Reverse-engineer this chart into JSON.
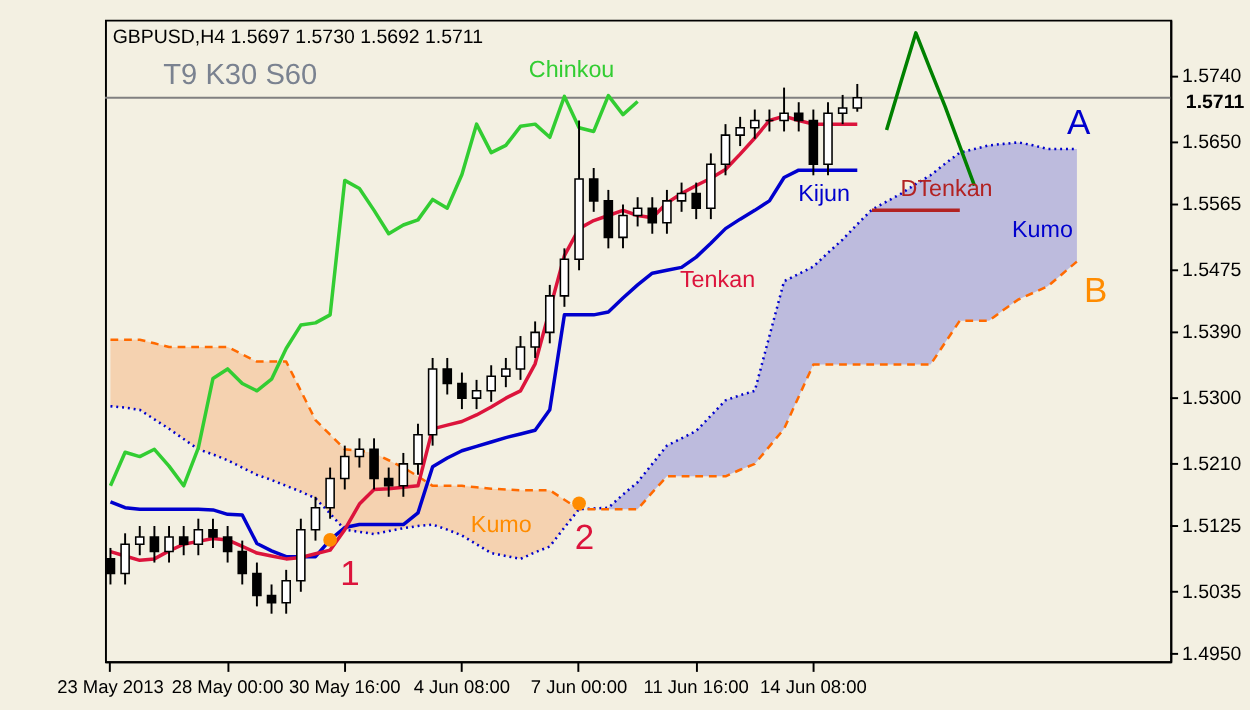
{
  "chart_data": {
    "type": "candlestick",
    "title": "GBPUSD,H4  1.5697 1.5730 1.5692 1.5711",
    "subtitle": "T9 K30 S60",
    "color": "#000000",
    "categories": [
      "23 May 2013",
      null,
      null,
      null,
      null,
      null,
      null,
      null,
      "28 May 00:00",
      null,
      null,
      null,
      null,
      null,
      null,
      null,
      "30 May 16:00",
      null,
      null,
      null,
      null,
      null,
      null,
      null,
      "4 Jun 08:00",
      null,
      null,
      null,
      null,
      null,
      null,
      null,
      "7 Jun 00:00",
      null,
      null,
      null,
      null,
      null,
      null,
      null,
      "11 Jun 16:00",
      null,
      null,
      null,
      null,
      null,
      null,
      null,
      "14 Jun 08:00",
      null,
      null,
      null,
      null,
      null,
      null,
      null,
      null,
      null,
      null,
      null,
      null,
      null,
      null,
      null,
      null,
      null,
      null,
      null,
      null,
      null,
      null,
      null,
      null
    ],
    "ohlc": [
      [
        1.508,
        1.5095,
        1.5045,
        1.506
      ],
      [
        1.506,
        1.5115,
        1.5045,
        1.51
      ],
      [
        1.51,
        1.5125,
        1.5085,
        1.511
      ],
      [
        1.511,
        1.5125,
        1.5075,
        1.509
      ],
      [
        1.509,
        1.5125,
        1.5075,
        1.511
      ],
      [
        1.511,
        1.5125,
        1.5085,
        1.51
      ],
      [
        1.51,
        1.5135,
        1.5085,
        1.512
      ],
      [
        1.512,
        1.5135,
        1.5095,
        1.511
      ],
      [
        1.511,
        1.5125,
        1.5075,
        1.509
      ],
      [
        1.509,
        1.5105,
        1.5045,
        1.506
      ],
      [
        1.506,
        1.5075,
        1.5015,
        1.503
      ],
      [
        1.503,
        1.5045,
        1.5005,
        1.502
      ],
      [
        1.502,
        1.5065,
        1.5005,
        1.505
      ],
      [
        1.505,
        1.5135,
        1.5035,
        1.512
      ],
      [
        1.512,
        1.5165,
        1.5105,
        1.515
      ],
      [
        1.515,
        1.5205,
        1.5135,
        1.519
      ],
      [
        1.519,
        1.5235,
        1.5175,
        1.522
      ],
      [
        1.522,
        1.5245,
        1.5205,
        1.523
      ],
      [
        1.523,
        1.5245,
        1.5175,
        1.519
      ],
      [
        1.519,
        1.5205,
        1.5165,
        1.518
      ],
      [
        1.518,
        1.5225,
        1.5165,
        1.521
      ],
      [
        1.521,
        1.5265,
        1.5195,
        1.525
      ],
      [
        1.525,
        1.5355,
        1.5235,
        1.534
      ],
      [
        1.534,
        1.5355,
        1.5305,
        1.532
      ],
      [
        1.532,
        1.5335,
        1.5285,
        1.53
      ],
      [
        1.53,
        1.5325,
        1.5285,
        1.531
      ],
      [
        1.531,
        1.5345,
        1.5295,
        1.533
      ],
      [
        1.533,
        1.5355,
        1.5315,
        1.534
      ],
      [
        1.534,
        1.5385,
        1.5325,
        1.537
      ],
      [
        1.537,
        1.5405,
        1.5355,
        1.539
      ],
      [
        1.539,
        1.5455,
        1.5375,
        1.544
      ],
      [
        1.544,
        1.5505,
        1.5425,
        1.549
      ],
      [
        1.549,
        1.568,
        1.5475,
        1.56
      ],
      [
        1.56,
        1.5615,
        1.5555,
        1.557
      ],
      [
        1.557,
        1.5585,
        1.5505,
        1.552
      ],
      [
        1.552,
        1.5565,
        1.5505,
        1.555
      ],
      [
        1.555,
        1.5575,
        1.5535,
        1.556
      ],
      [
        1.556,
        1.5575,
        1.5525,
        1.554
      ],
      [
        1.554,
        1.5585,
        1.5525,
        1.557
      ],
      [
        1.557,
        1.5595,
        1.5555,
        1.558
      ],
      [
        1.558,
        1.5595,
        1.5545,
        1.556
      ],
      [
        1.556,
        1.5635,
        1.5545,
        1.562
      ],
      [
        1.562,
        1.5675,
        1.5605,
        1.566
      ],
      [
        1.566,
        1.5685,
        1.5645,
        1.567
      ],
      [
        1.567,
        1.5695,
        1.5655,
        1.568
      ],
      [
        1.568,
        1.5695,
        1.5665,
        1.568
      ],
      [
        1.568,
        1.5725,
        1.5665,
        1.569
      ],
      [
        1.569,
        1.5705,
        1.5665,
        1.568
      ],
      [
        1.568,
        1.5695,
        1.5605,
        1.562
      ],
      [
        1.562,
        1.5705,
        1.5605,
        1.569
      ],
      [
        1.569,
        1.5715,
        1.5675,
        1.5697
      ],
      [
        1.5697,
        1.573,
        1.5692,
        1.5711
      ],
      null,
      null,
      null,
      null,
      null,
      null,
      null,
      null,
      null,
      null,
      null,
      null,
      null,
      null,
      null,
      null,
      null,
      null,
      null,
      null,
      null
    ],
    "series": [
      {
        "type": "line",
        "color": "#0000cd",
        "line_style": "dotted",
        "lower": [
          null,
          null,
          null,
          null,
          null,
          null,
          null,
          null,
          null,
          null,
          null,
          null,
          null,
          null,
          null,
          null,
          null,
          null,
          null,
          null,
          null,
          null,
          null,
          null,
          null,
          null,
          null,
          null,
          null,
          null,
          null,
          null,
          null,
          null,
          1.5148,
          1.5148,
          1.5148,
          1.5171,
          1.5193,
          1.5193,
          1.5193,
          1.5193,
          1.5193,
          1.5202,
          1.521,
          1.5234,
          1.5258,
          1.5302,
          1.5346,
          1.5346,
          1.5346,
          1.5346,
          1.5346,
          1.5346,
          1.5346,
          1.5346,
          1.5346,
          1.5376,
          1.5406,
          1.5406,
          1.5406,
          1.5421,
          1.5435,
          1.5444,
          1.5453,
          1.547,
          1.5487,
          null,
          null,
          null,
          null,
          null,
          null
        ],
        "upper": [
          null,
          null,
          null,
          null,
          null,
          null,
          null,
          null,
          null,
          null,
          null,
          null,
          null,
          null,
          null,
          null,
          null,
          null,
          null,
          null,
          null,
          null,
          null,
          null,
          null,
          null,
          null,
          null,
          null,
          null,
          null,
          null,
          null,
          null,
          1.515,
          1.5168,
          1.5185,
          1.521,
          1.5235,
          1.5245,
          1.5255,
          1.5276,
          1.5297,
          1.5304,
          1.531,
          1.5385,
          1.546,
          1.547,
          1.548,
          1.5499,
          1.5517,
          1.5538,
          1.5558,
          1.5569,
          1.558,
          1.5593,
          1.5605,
          1.5621,
          1.5636,
          1.5641,
          1.5646,
          1.5648,
          1.565,
          1.5646,
          1.5641,
          1.5641,
          1.5641,
          null,
          null,
          null,
          null,
          null,
          null
        ],
        "values": [
          1.5289,
          1.5287,
          1.5284,
          1.5271,
          1.5258,
          1.5244,
          1.523,
          1.5223,
          1.5215,
          1.5205,
          1.5195,
          1.5188,
          1.518,
          1.5172,
          1.5163,
          1.5142,
          1.512,
          1.5117,
          1.5114,
          1.5118,
          1.5122,
          1.5125,
          1.5127,
          1.512,
          1.5112,
          1.51,
          1.5088,
          1.5084,
          1.508,
          1.5089,
          1.5097,
          1.5123,
          1.5148,
          1.5149,
          1.515,
          1.5168,
          1.5185,
          1.521,
          1.5235,
          1.5245,
          1.5255,
          1.5276,
          1.5297,
          1.5304,
          1.531,
          1.5385,
          1.546,
          1.547,
          1.548,
          1.5499,
          1.5517,
          1.5538,
          1.5558,
          1.5569,
          1.558,
          1.5593,
          1.5605,
          1.5621,
          1.5636,
          1.5641,
          1.5646,
          1.5648,
          1.565,
          1.5646,
          1.5641,
          1.5641,
          1.5641,
          null,
          null,
          null,
          null,
          null,
          null
        ]
      },
      {
        "type": "line",
        "color": "#ff6a00",
        "line_style": "dashed",
        "lower": [
          1.5289,
          1.5287,
          1.5284,
          1.5271,
          1.5258,
          1.5244,
          1.523,
          1.5223,
          1.5215,
          1.5205,
          1.5195,
          1.5188,
          1.518,
          1.5172,
          1.5163,
          1.5142,
          1.512,
          1.5117,
          1.5114,
          1.5118,
          1.5122,
          1.5125,
          1.5127,
          1.512,
          1.5112,
          1.51,
          1.5088,
          1.5084,
          1.508,
          1.5089,
          1.5097,
          1.5123,
          1.5148,
          1.5149,
          null,
          null,
          null,
          null,
          null,
          null,
          null,
          null,
          null,
          null,
          null,
          null,
          null,
          null,
          null,
          null,
          null,
          null,
          null,
          null,
          null,
          null,
          null,
          null,
          null,
          null,
          null,
          null,
          null,
          null,
          null,
          null,
          null,
          null,
          null,
          null,
          null,
          null,
          null
        ],
        "upper": [
          1.538,
          1.538,
          1.538,
          1.5375,
          1.537,
          1.537,
          1.537,
          1.537,
          1.537,
          1.536,
          1.535,
          1.535,
          1.535,
          1.531,
          1.527,
          1.525,
          1.523,
          1.5228,
          1.5225,
          1.5215,
          1.5205,
          1.5193,
          1.518,
          1.518,
          1.518,
          1.5178,
          1.5176,
          1.5175,
          1.5174,
          1.5174,
          1.5174,
          1.5161,
          1.5148,
          1.5148,
          null,
          null,
          null,
          null,
          null,
          null,
          null,
          null,
          null,
          null,
          null,
          null,
          null,
          null,
          null,
          null,
          null,
          null,
          null,
          null,
          null,
          null,
          null,
          null,
          null,
          null,
          null,
          null,
          null,
          null,
          null,
          null,
          null,
          null,
          null,
          null,
          null,
          null,
          null
        ],
        "values": [
          1.538,
          1.538,
          1.538,
          1.5375,
          1.537,
          1.537,
          1.537,
          1.537,
          1.537,
          1.536,
          1.535,
          1.535,
          1.535,
          1.531,
          1.527,
          1.525,
          1.523,
          1.5228,
          1.5225,
          1.5215,
          1.5205,
          1.5193,
          1.518,
          1.518,
          1.518,
          1.5178,
          1.5176,
          1.5175,
          1.5174,
          1.5174,
          1.5174,
          1.5161,
          1.5148,
          1.5148,
          1.5148,
          1.5148,
          1.5148,
          1.5171,
          1.5193,
          1.5193,
          1.5193,
          1.5193,
          1.5193,
          1.5202,
          1.521,
          1.5234,
          1.5258,
          1.5302,
          1.5346,
          1.5346,
          1.5346,
          1.5346,
          1.5346,
          1.5346,
          1.5346,
          1.5346,
          1.5346,
          1.5376,
          1.5406,
          1.5406,
          1.5406,
          1.5421,
          1.5435,
          1.5444,
          1.5453,
          1.547,
          1.5487,
          null,
          null,
          null,
          null,
          null,
          null
        ]
      },
      {
        "type": "line",
        "color": "#32cd32",
        "line_style": "solid",
        "values": [
          1.518,
          1.5226,
          1.522,
          1.523,
          1.5207,
          1.518,
          1.5232,
          1.5327,
          1.534,
          1.532,
          1.531,
          1.5326,
          1.5368,
          1.54,
          1.5403,
          1.5414,
          1.5598,
          1.5587,
          1.5557,
          1.5525,
          1.5537,
          1.5544,
          1.5572,
          1.556,
          1.5606,
          1.5675,
          1.5636,
          1.5646,
          1.5672,
          1.5675,
          1.5657,
          1.5713,
          1.567,
          1.5665,
          1.5714,
          1.5688,
          1.5706,
          null,
          null,
          null,
          null,
          null,
          null,
          null,
          null,
          null,
          null,
          null,
          null,
          null,
          null,
          null,
          null,
          null,
          null,
          null,
          null,
          null,
          null,
          null,
          null,
          null,
          null,
          null,
          null,
          null,
          null,
          null,
          null,
          null,
          null,
          null,
          null
        ]
      },
      {
        "type": "line",
        "color": "#0000cd",
        "line_style": "solid",
        "values": [
          1.5158,
          1.515,
          1.5148,
          1.5148,
          1.5148,
          1.5148,
          1.5148,
          1.5147,
          1.5141,
          1.514,
          1.5101,
          1.5091,
          1.5083,
          1.5083,
          1.5083,
          1.5106,
          1.5123,
          1.5127,
          1.5127,
          1.5127,
          1.5127,
          1.5143,
          1.5206,
          1.5218,
          1.5228,
          1.5234,
          1.524,
          1.5246,
          1.5251,
          1.5256,
          1.5284,
          1.5414,
          1.5414,
          1.5414,
          1.5418,
          1.5437,
          1.5455,
          1.5471,
          1.5475,
          1.5479,
          1.5493,
          1.5512,
          1.5532,
          1.5545,
          1.5557,
          1.557,
          1.5602,
          1.5612,
          1.5612,
          1.5612,
          1.5612,
          1.5612,
          null,
          null,
          null,
          null,
          null,
          null,
          null,
          null,
          null,
          null,
          null,
          null,
          null,
          null,
          null,
          null,
          null,
          null,
          null,
          null,
          null
        ]
      },
      {
        "type": "line",
        "color": "#dc143c",
        "line_style": "solid",
        "values": [
          1.509,
          1.5084,
          1.5078,
          1.508,
          1.5091,
          1.51,
          1.5104,
          1.5108,
          1.5106,
          1.5097,
          1.5088,
          1.5084,
          1.508,
          1.5082,
          1.5087,
          1.5092,
          1.512,
          1.5155,
          1.5175,
          1.5176,
          1.5178,
          1.518,
          1.5258,
          1.5263,
          1.5268,
          1.5277,
          1.5288,
          1.53,
          1.531,
          1.5347,
          null,
          1.5495,
          1.5532,
          1.5543,
          1.555,
          1.5557,
          1.555,
          1.5547,
          1.5567,
          1.558,
          1.5591,
          1.5601,
          1.5613,
          1.5634,
          1.5656,
          1.568,
          1.5686,
          1.568,
          1.5675,
          1.5675,
          1.5675,
          1.5675,
          null,
          null,
          null,
          null,
          null,
          null,
          null,
          null,
          null,
          null,
          null,
          null,
          null,
          null,
          null,
          null,
          null,
          null,
          null,
          null,
          null
        ]
      },
      {
        "type": "line",
        "color": "#b22222",
        "line_style": "solid",
        "values": [
          null,
          null,
          null,
          null,
          null,
          null,
          null,
          null,
          null,
          null,
          null,
          null,
          null,
          null,
          null,
          null,
          null,
          null,
          null,
          null,
          null,
          null,
          null,
          null,
          null,
          null,
          null,
          null,
          null,
          null,
          null,
          null,
          null,
          null,
          null,
          null,
          null,
          null,
          null,
          null,
          null,
          null,
          null,
          null,
          null,
          null,
          null,
          null,
          null,
          null,
          null,
          null,
          1.5557,
          1.5557,
          1.5557,
          1.5557,
          1.5557,
          1.5557,
          1.5557,
          null,
          null,
          null,
          null,
          null,
          null,
          null,
          null,
          null,
          null,
          null,
          null,
          null,
          null
        ]
      },
      {
        "type": "line",
        "color": "#008000",
        "line_style": "solid",
        "values": [
          null,
          null,
          null,
          null,
          null,
          null,
          null,
          null,
          null,
          null,
          null,
          null,
          null,
          null,
          null,
          null,
          null,
          null,
          null,
          null,
          null,
          null,
          null,
          null,
          null,
          null,
          null,
          null,
          null,
          null,
          null,
          null,
          null,
          null,
          null,
          null,
          null,
          null,
          null,
          null,
          null,
          null,
          null,
          null,
          null,
          null,
          null,
          null,
          null,
          null,
          null,
          null,
          null,
          1.5667,
          1.5734,
          1.58,
          1.5749,
          1.5699,
          1.5645,
          1.5591,
          null,
          null,
          null,
          null,
          null,
          null,
          null,
          null,
          null,
          null,
          null,
          null,
          null
        ]
      },
      {
        "type": "scatter",
        "color": "#ff8c00",
        "marker": "circle",
        "values": [
          null,
          null,
          null,
          null,
          null,
          null,
          null,
          null,
          null,
          null,
          null,
          null,
          null,
          null,
          null,
          1.5106,
          null,
          null,
          null,
          null,
          null,
          null,
          null,
          null,
          null,
          null,
          null,
          null,
          null,
          null,
          null,
          null,
          1.5156,
          null,
          null,
          null,
          null,
          null,
          null,
          null,
          null,
          null,
          null,
          null,
          null,
          null,
          null,
          null,
          null,
          null,
          null,
          null,
          null,
          null,
          null,
          null,
          null,
          null,
          null,
          null,
          null,
          null,
          null,
          null,
          null,
          null,
          null,
          null,
          null,
          null,
          null,
          null,
          null
        ]
      }
    ],
    "ref_lines": [
      {
        "axis": "y",
        "value": 1.5711,
        "label": "1.5711",
        "color": "#808080"
      }
    ],
    "annotations": [
      "Chinkou",
      "Tenkan",
      {
        "text": "Kijun",
        "y": 1.5612
      },
      "DTenkan",
      "Kumo",
      "Kumo",
      "A",
      "B",
      {
        "text": "1",
        "y": 1.5106
      },
      "2"
    ],
    "ylim": [
      1.494,
      1.5818
    ],
    "yticks": [
      {
        "value": 1.495,
        "label": "1.4950"
      },
      {
        "value": 1.5035,
        "label": "1.5035"
      },
      {
        "value": 1.5125,
        "label": "1.5125"
      },
      {
        "value": 1.521,
        "label": "1.5210"
      },
      {
        "value": 1.53,
        "label": "1.5300"
      },
      {
        "value": 1.539,
        "label": "1.5390"
      },
      {
        "value": 1.5475,
        "label": "1.5475"
      },
      {
        "value": 1.5565,
        "label": "1.5565"
      },
      {
        "value": 1.565,
        "label": "1.5650"
      },
      {
        "value": 1.574,
        "label": "1.5740"
      }
    ],
    "grid": false
  }
}
